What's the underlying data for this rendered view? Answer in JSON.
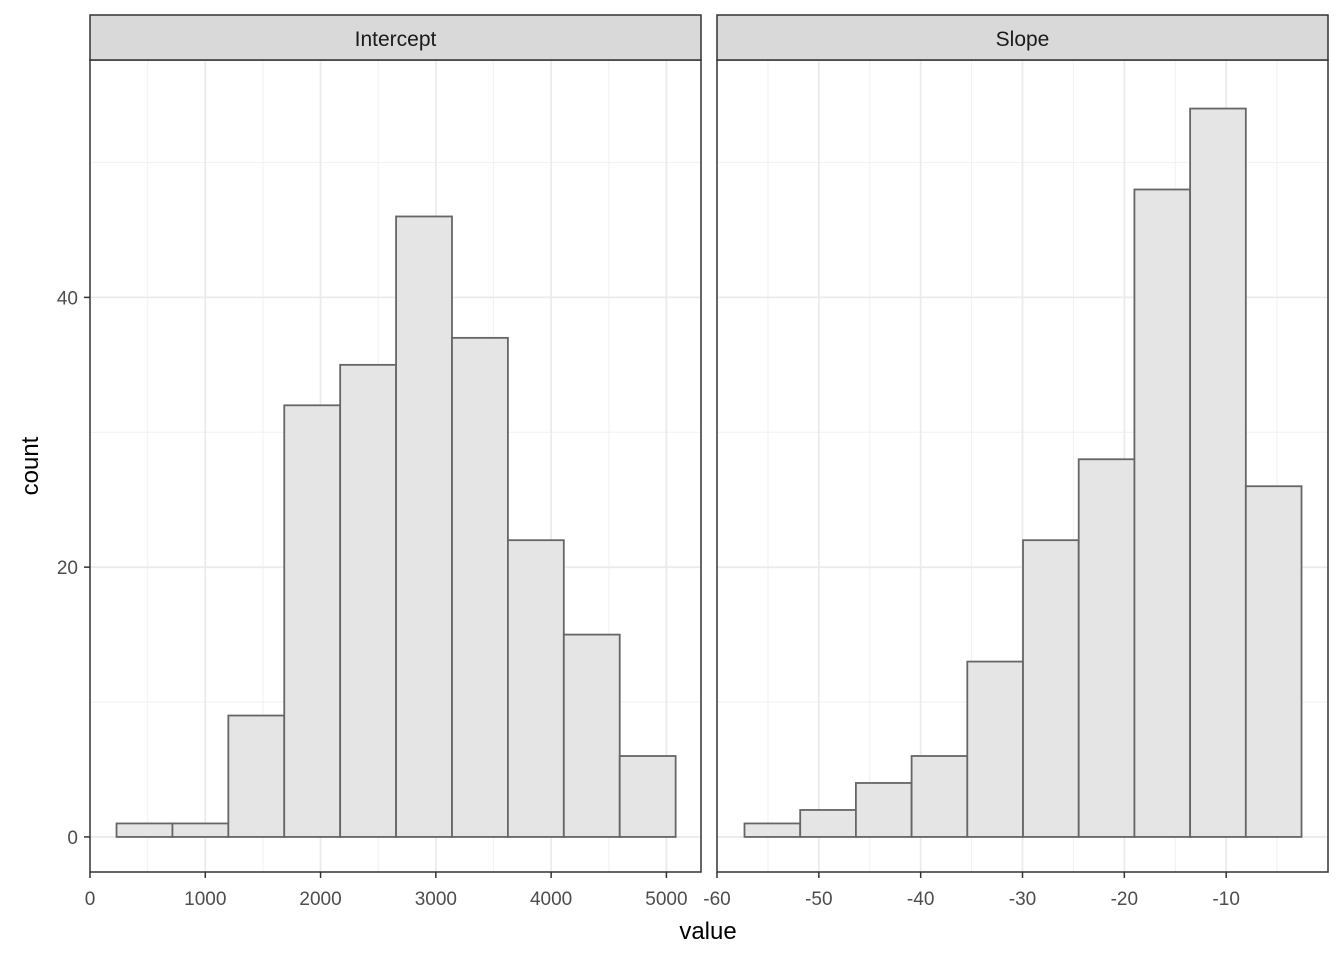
{
  "chart_data": {
    "type": "bar",
    "xlabel": "value",
    "ylabel": "count",
    "ylim": [
      -2.6,
      57.6
    ],
    "yticks": [
      0,
      20,
      40
    ],
    "grid": true,
    "panels": [
      {
        "title": "Intercept",
        "xlim": [
          0,
          5300
        ],
        "xticks": [
          0,
          1000,
          2000,
          3000,
          4000,
          5000
        ],
        "bins": [
          {
            "x0": 230,
            "x1": 715,
            "count": 1
          },
          {
            "x0": 715,
            "x1": 1200,
            "count": 1
          },
          {
            "x0": 1200,
            "x1": 1685,
            "count": 9
          },
          {
            "x0": 1685,
            "x1": 2170,
            "count": 32
          },
          {
            "x0": 2170,
            "x1": 2655,
            "count": 35
          },
          {
            "x0": 2655,
            "x1": 3140,
            "count": 46
          },
          {
            "x0": 3140,
            "x1": 3625,
            "count": 37
          },
          {
            "x0": 3625,
            "x1": 4110,
            "count": 22
          },
          {
            "x0": 4110,
            "x1": 4595,
            "count": 15
          },
          {
            "x0": 4595,
            "x1": 5080,
            "count": 6
          }
        ]
      },
      {
        "title": "Slope",
        "xlim": [
          -60,
          0
        ],
        "xticks": [
          -60,
          -50,
          -40,
          -30,
          -20,
          -10
        ],
        "bins": [
          {
            "x0": -57.3,
            "x1": -51.83,
            "count": 1
          },
          {
            "x0": -51.83,
            "x1": -46.36,
            "count": 2
          },
          {
            "x0": -46.36,
            "x1": -40.89,
            "count": 4
          },
          {
            "x0": -40.89,
            "x1": -35.42,
            "count": 6
          },
          {
            "x0": -35.42,
            "x1": -29.95,
            "count": 13
          },
          {
            "x0": -29.95,
            "x1": -24.48,
            "count": 22
          },
          {
            "x0": -24.48,
            "x1": -19.01,
            "count": 28
          },
          {
            "x0": -19.01,
            "x1": -13.54,
            "count": 48
          },
          {
            "x0": -13.54,
            "x1": -8.07,
            "count": 54
          },
          {
            "x0": -8.07,
            "x1": -2.6,
            "count": 26
          }
        ]
      }
    ]
  }
}
